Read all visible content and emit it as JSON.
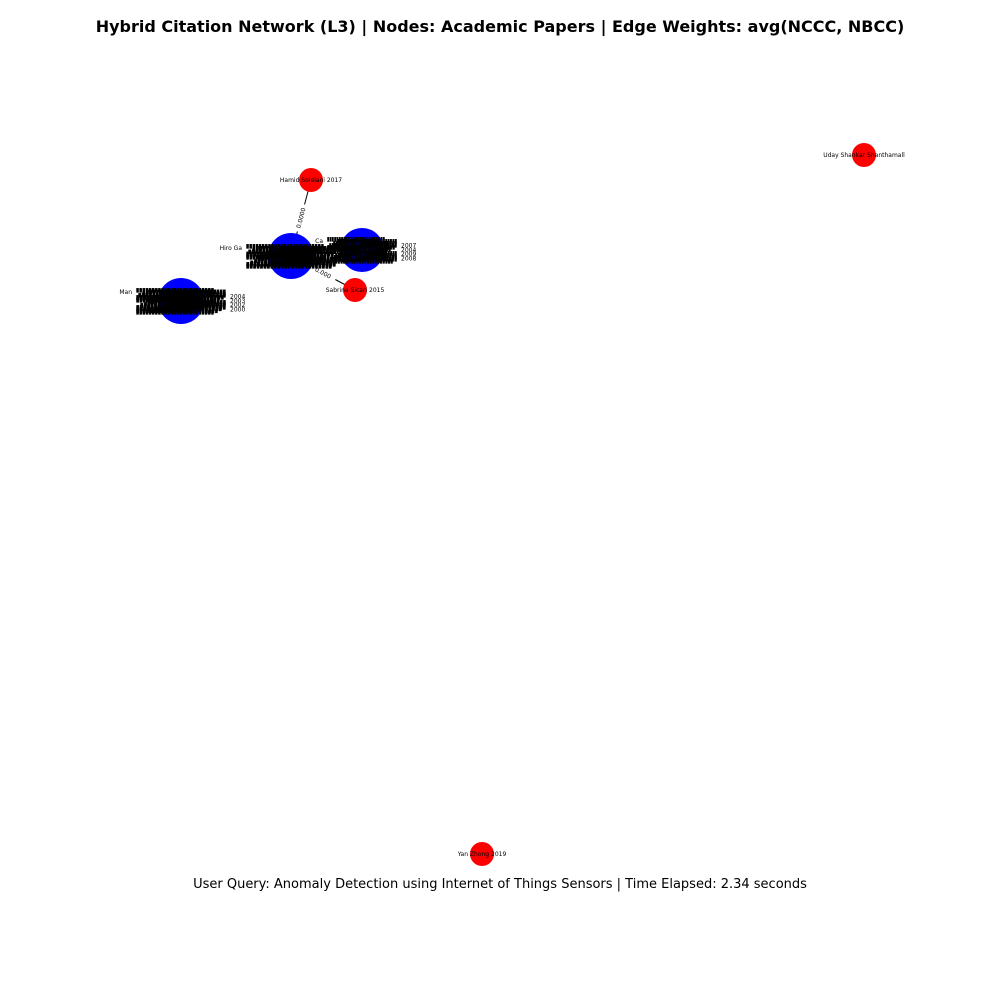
{
  "title": "Hybrid Citation Network (L3) | Nodes: Academic Papers | Edge Weights: avg(NCCC, NBCC)",
  "footer": "User Query: Anomaly Detection using Internet of Things Sensors | Time Elapsed: 2.34 seconds",
  "colors": {
    "query_node": "#ff0000",
    "cluster_node": "#0000ff",
    "edge": "#000000"
  },
  "nodes": [
    {
      "id": "n1",
      "label": "Hamid Soleiani 2017",
      "type": "query"
    },
    {
      "id": "n2",
      "label": "Uday Shankar Shanthamall",
      "type": "query"
    },
    {
      "id": "n3",
      "label": "Sabrina Sicari 2015",
      "type": "query"
    },
    {
      "id": "n4",
      "label": "Yan Zhong 2019",
      "type": "query"
    },
    {
      "id": "c1",
      "label": "Hiro Ga",
      "type": "cluster"
    },
    {
      "id": "c2",
      "label": "Ca",
      "type": "cluster"
    },
    {
      "id": "c3",
      "label": "Man",
      "type": "cluster"
    }
  ],
  "edges": [
    {
      "source": "n1",
      "target": "c1",
      "label": "0.0000"
    },
    {
      "source": "n3",
      "target": "c1",
      "label": "0.000"
    }
  ],
  "cluster_fragments": {
    "c1": [
      "Hiro Ga",
      "Ei",
      "Re"
    ],
    "c2": [
      "Ca",
      "2007",
      "2004",
      "2009",
      "2008"
    ],
    "c3": [
      "Man",
      "2004",
      "2003",
      "2002",
      "2000"
    ]
  }
}
